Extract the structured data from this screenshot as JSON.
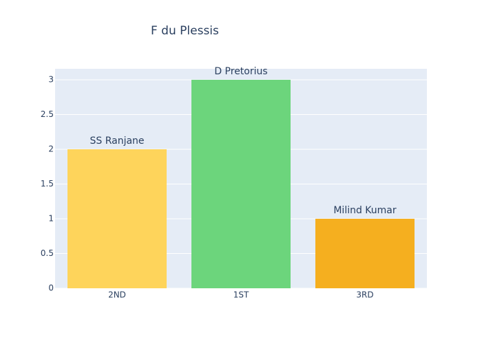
{
  "chart_data": {
    "type": "bar",
    "title": "F du Plessis",
    "categories": [
      "2ND",
      "1ST",
      "3RD"
    ],
    "values": [
      2,
      3,
      1
    ],
    "labels": [
      "SS Ranjane",
      "D Pretorius",
      "Milind Kumar"
    ],
    "colors": [
      "#fed45b",
      "#6cd57c",
      "#f5af1f"
    ],
    "ylim": [
      0,
      3.158
    ],
    "yticks": [
      0,
      0.5,
      1,
      1.5,
      2,
      2.5,
      3
    ],
    "grid": true
  }
}
